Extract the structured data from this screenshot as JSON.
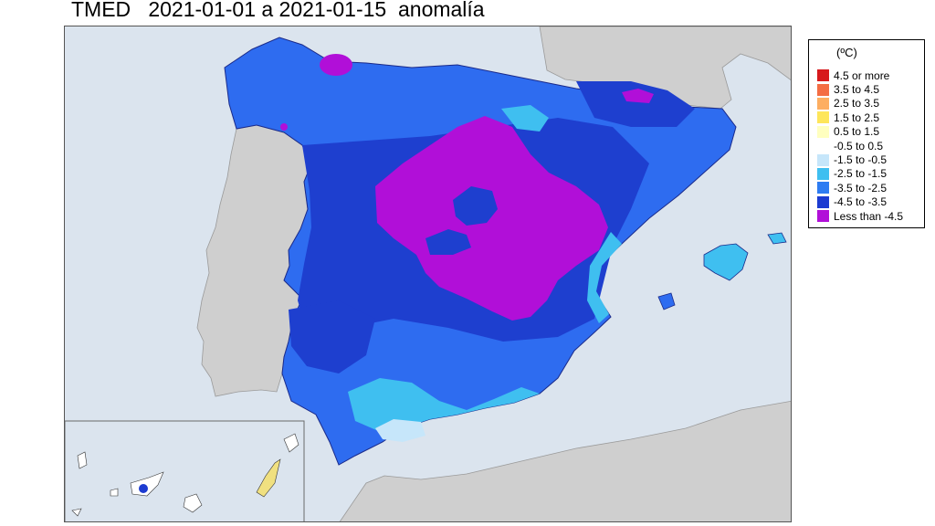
{
  "title": "TMED   2021-01-01 a 2021-01-15  anomalía",
  "legend": {
    "title": "(ºC)",
    "items": [
      {
        "label": "4.5 or more",
        "color": "#d7191c"
      },
      {
        "label": "3.5 to 4.5",
        "color": "#f46d43"
      },
      {
        "label": "2.5 to 3.5",
        "color": "#fdae61"
      },
      {
        "label": "1.5 to 2.5",
        "color": "#fee65a"
      },
      {
        "label": "0.5 to 1.5",
        "color": "#ffffbf"
      },
      {
        "label": "-0.5 to 0.5",
        "color": "#ffffff"
      },
      {
        "label": "-1.5 to -0.5",
        "color": "#c6e6fa"
      },
      {
        "label": "-2.5 to -1.5",
        "color": "#3fbff0"
      },
      {
        "label": "-3.5 to -2.5",
        "color": "#2e7cf2"
      },
      {
        "label": "-4.5 to -3.5",
        "color": "#1c3bd1"
      },
      {
        "label": "Less than -4.5",
        "color": "#b10fd8"
      }
    ]
  },
  "map": {
    "sea_color": "#dbe4ee",
    "land_color": "#cfcfcf"
  }
}
